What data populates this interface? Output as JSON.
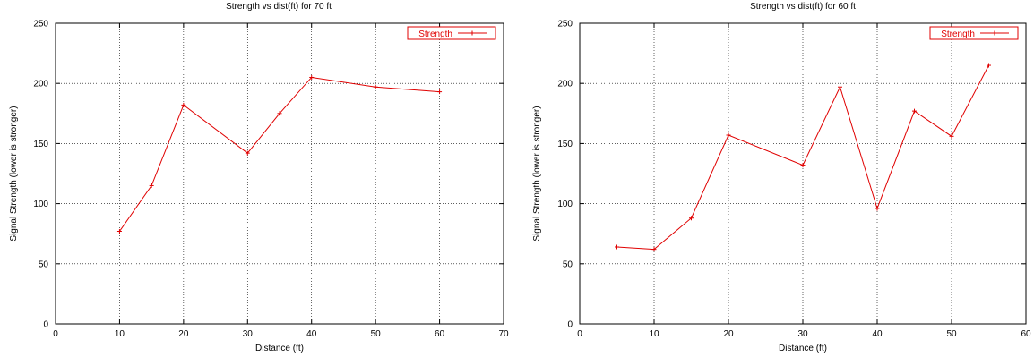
{
  "chart_data": [
    {
      "type": "line",
      "title": "Strength vs dist(ft) for 70 ft",
      "xlabel": "Distance (ft)",
      "ylabel": "Signal Strength (lower is stronger)",
      "xlim": [
        0,
        70
      ],
      "ylim": [
        0,
        250
      ],
      "xticks": [
        0,
        10,
        20,
        30,
        40,
        50,
        60,
        70
      ],
      "yticks": [
        0,
        50,
        100,
        150,
        200,
        250
      ],
      "grid": true,
      "legend_position": "top-right",
      "series": [
        {
          "name": "Strength",
          "color": "#e00000",
          "x": [
            10,
            15,
            20,
            30,
            35,
            40,
            50,
            60
          ],
          "y": [
            77,
            115,
            182,
            142,
            175,
            205,
            197,
            193
          ]
        }
      ]
    },
    {
      "type": "line",
      "title": "Strength vs dist(ft) for 60 ft",
      "xlabel": "Distance (ft)",
      "ylabel": "Signal Strength (lower is stronger)",
      "xlim": [
        0,
        60
      ],
      "ylim": [
        0,
        250
      ],
      "xticks": [
        0,
        10,
        20,
        30,
        40,
        50,
        60
      ],
      "yticks": [
        0,
        50,
        100,
        150,
        200,
        250
      ],
      "grid": true,
      "legend_position": "top-right",
      "series": [
        {
          "name": "Strength",
          "color": "#e00000",
          "x": [
            5,
            10,
            15,
            20,
            30,
            35,
            40,
            45,
            50,
            55
          ],
          "y": [
            64,
            62,
            88,
            157,
            132,
            197,
            96,
            177,
            156,
            215
          ]
        }
      ]
    }
  ]
}
